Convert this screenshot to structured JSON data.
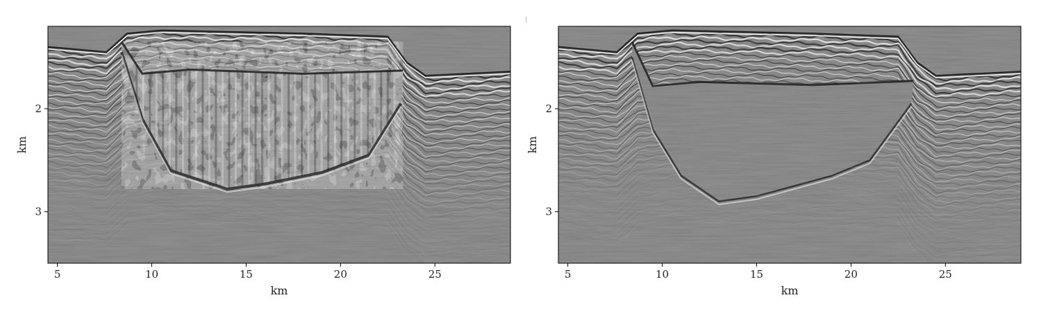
{
  "chart_data": [
    {
      "type": "heatmap",
      "title": "",
      "xlabel": "km",
      "ylabel": "km",
      "xlim": [
        4.5,
        29
      ],
      "ylim": [
        3.5,
        1.2
      ],
      "x_ticks": [
        5,
        10,
        15,
        20,
        25
      ],
      "y_ticks": [
        2,
        3
      ],
      "grid": false,
      "colormap": "grayscale seismic amplitude",
      "background_color": "#7f7f7f",
      "seafloor_depth": [
        [
          4.5,
          1.4
        ],
        [
          7.6,
          1.45
        ],
        [
          8.7,
          1.27
        ],
        [
          10.5,
          1.24
        ],
        [
          18,
          1.27
        ],
        [
          22.5,
          1.3
        ],
        [
          23.5,
          1.55
        ],
        [
          24.5,
          1.68
        ],
        [
          29,
          1.64
        ]
      ],
      "salt_top": [
        [
          8.4,
          1.35
        ],
        [
          9.5,
          1.66
        ],
        [
          12,
          1.62
        ],
        [
          18,
          1.66
        ],
        [
          23.3,
          1.63
        ]
      ],
      "salt_base": [
        [
          8.4,
          1.45
        ],
        [
          9.5,
          2.1
        ],
        [
          11,
          2.6
        ],
        [
          14,
          2.78
        ],
        [
          16,
          2.73
        ],
        [
          19,
          2.62
        ],
        [
          21.5,
          2.45
        ],
        [
          23.2,
          1.95
        ]
      ]
    },
    {
      "type": "heatmap",
      "title": "",
      "xlabel": "km",
      "ylabel": "km",
      "xlim": [
        4.5,
        29
      ],
      "ylim": [
        3.5,
        1.2
      ],
      "x_ticks": [
        5,
        10,
        15,
        20,
        25
      ],
      "y_ticks": [
        2,
        3
      ],
      "grid": false,
      "colormap": "grayscale seismic amplitude",
      "background_color": "#7f7f7f",
      "seafloor_depth": [
        [
          4.5,
          1.4
        ],
        [
          7.6,
          1.45
        ],
        [
          8.7,
          1.27
        ],
        [
          10.5,
          1.24
        ],
        [
          18,
          1.27
        ],
        [
          22.5,
          1.3
        ],
        [
          23.5,
          1.55
        ],
        [
          24.5,
          1.68
        ],
        [
          29,
          1.64
        ]
      ],
      "salt_top": [
        [
          8.4,
          1.35
        ],
        [
          9.5,
          1.78
        ],
        [
          12,
          1.74
        ],
        [
          18,
          1.77
        ],
        [
          23.3,
          1.73
        ]
      ],
      "salt_base": [
        [
          8.4,
          1.5
        ],
        [
          9.5,
          2.2
        ],
        [
          11,
          2.65
        ],
        [
          13,
          2.9
        ],
        [
          15,
          2.85
        ],
        [
          17,
          2.75
        ],
        [
          19,
          2.65
        ],
        [
          21,
          2.5
        ],
        [
          23.2,
          1.95
        ]
      ]
    }
  ]
}
